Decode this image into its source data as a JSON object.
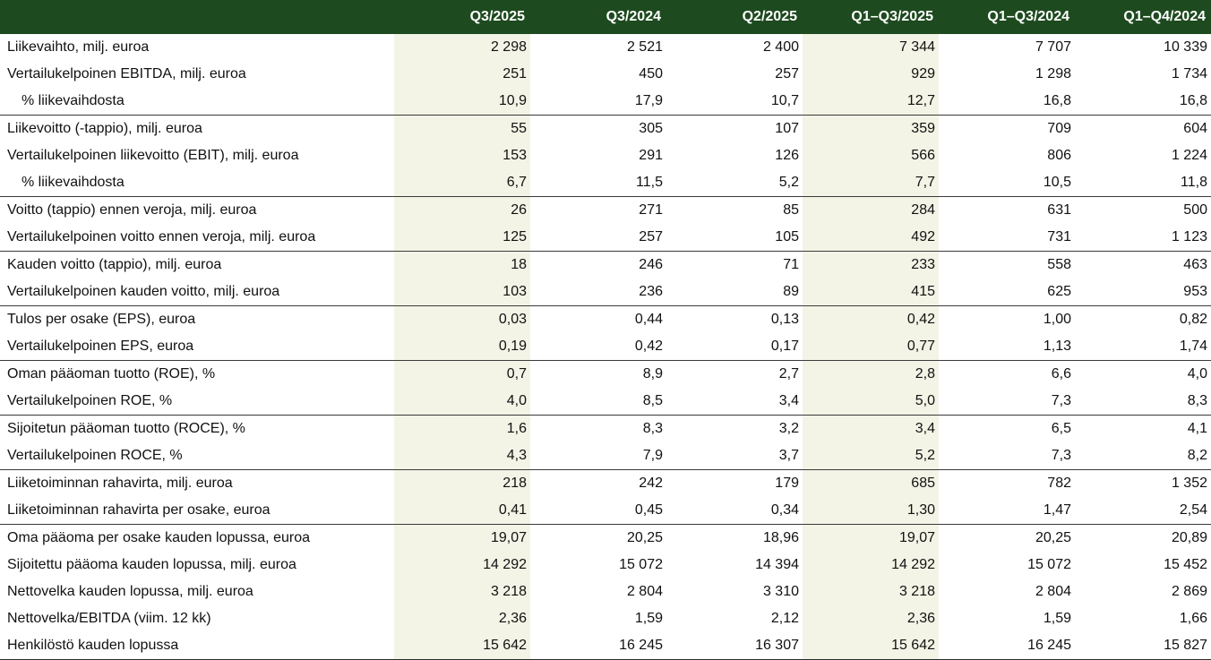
{
  "columns": [
    "Q3/2025",
    "Q3/2024",
    "Q2/2025",
    "Q1–Q3/2025",
    "Q1–Q3/2024",
    "Q1–Q4/2024"
  ],
  "rows": [
    {
      "label": "Liikevaihto, milj. euroa",
      "values": [
        "2 298",
        "2 521",
        "2 400",
        "7 344",
        "7 707",
        "10 339"
      ]
    },
    {
      "label": "Vertailukelpoinen EBITDA, milj. euroa",
      "values": [
        "251",
        "450",
        "257",
        "929",
        "1 298",
        "1 734"
      ]
    },
    {
      "label": "% liikevaihdosta",
      "values": [
        "10,9",
        "17,9",
        "10,7",
        "12,7",
        "16,8",
        "16,8"
      ]
    },
    {
      "label": "Liikevoitto (-tappio), milj. euroa",
      "values": [
        "55",
        "305",
        "107",
        "359",
        "709",
        "604"
      ]
    },
    {
      "label": "Vertailukelpoinen liikevoitto (EBIT), milj. euroa",
      "values": [
        "153",
        "291",
        "126",
        "566",
        "806",
        "1 224"
      ]
    },
    {
      "label": "% liikevaihdosta",
      "values": [
        "6,7",
        "11,5",
        "5,2",
        "7,7",
        "10,5",
        "11,8"
      ]
    },
    {
      "label": "Voitto (tappio) ennen veroja, milj. euroa",
      "values": [
        "26",
        "271",
        "85",
        "284",
        "631",
        "500"
      ]
    },
    {
      "label": "Vertailukelpoinen voitto ennen veroja, milj. euroa",
      "values": [
        "125",
        "257",
        "105",
        "492",
        "731",
        "1 123"
      ]
    },
    {
      "label": "Kauden voitto (tappio), milj. euroa",
      "values": [
        "18",
        "246",
        "71",
        "233",
        "558",
        "463"
      ]
    },
    {
      "label": "Vertailukelpoinen kauden voitto, milj. euroa",
      "values": [
        "103",
        "236",
        "89",
        "415",
        "625",
        "953"
      ]
    },
    {
      "label": "Tulos per osake (EPS), euroa",
      "values": [
        "0,03",
        "0,44",
        "0,13",
        "0,42",
        "1,00",
        "0,82"
      ]
    },
    {
      "label": "Vertailukelpoinen EPS, euroa",
      "values": [
        "0,19",
        "0,42",
        "0,17",
        "0,77",
        "1,13",
        "1,74"
      ]
    },
    {
      "label": "Oman pääoman tuotto (ROE), %",
      "values": [
        "0,7",
        "8,9",
        "2,7",
        "2,8",
        "6,6",
        "4,0"
      ]
    },
    {
      "label": "Vertailukelpoinen ROE, %",
      "values": [
        "4,0",
        "8,5",
        "3,4",
        "5,0",
        "7,3",
        "8,3"
      ]
    },
    {
      "label": "Sijoitetun pääoman tuotto (ROCE), %",
      "values": [
        "1,6",
        "8,3",
        "3,2",
        "3,4",
        "6,5",
        "4,1"
      ]
    },
    {
      "label": "Vertailukelpoinen ROCE, %",
      "values": [
        "4,3",
        "7,9",
        "3,7",
        "5,2",
        "7,3",
        "8,2"
      ]
    },
    {
      "label": "Liiketoiminnan rahavirta, milj. euroa",
      "values": [
        "218",
        "242",
        "179",
        "685",
        "782",
        "1 352"
      ]
    },
    {
      "label": "Liiketoiminnan rahavirta per osake, euroa",
      "values": [
        "0,41",
        "0,45",
        "0,34",
        "1,30",
        "1,47",
        "2,54"
      ]
    },
    {
      "label": "Oma pääoma per osake kauden lopussa, euroa",
      "values": [
        "19,07",
        "20,25",
        "18,96",
        "19,07",
        "20,25",
        "20,89"
      ]
    },
    {
      "label": "Sijoitettu pääoma kauden lopussa, milj. euroa",
      "values": [
        "14 292",
        "15 072",
        "14 394",
        "14 292",
        "15 072",
        "15 452"
      ]
    },
    {
      "label": "Nettovelka kauden lopussa, milj. euroa",
      "values": [
        "3 218",
        "2 804",
        "3 310",
        "3 218",
        "2 804",
        "2 869"
      ]
    },
    {
      "label": "Nettovelka/EBITDA (viim. 12 kk)",
      "values": [
        "2,36",
        "1,59",
        "2,12",
        "2,36",
        "1,59",
        "1,66"
      ]
    },
    {
      "label": "Henkilöstö kauden lopussa",
      "values": [
        "15 642",
        "16 245",
        "16 307",
        "15 642",
        "16 245",
        "15 827"
      ]
    }
  ],
  "colors": {
    "header_bg": "#1d4a1e",
    "header_text": "#ffffff",
    "shaded_column": "#f3f3e6",
    "text": "#111111"
  }
}
